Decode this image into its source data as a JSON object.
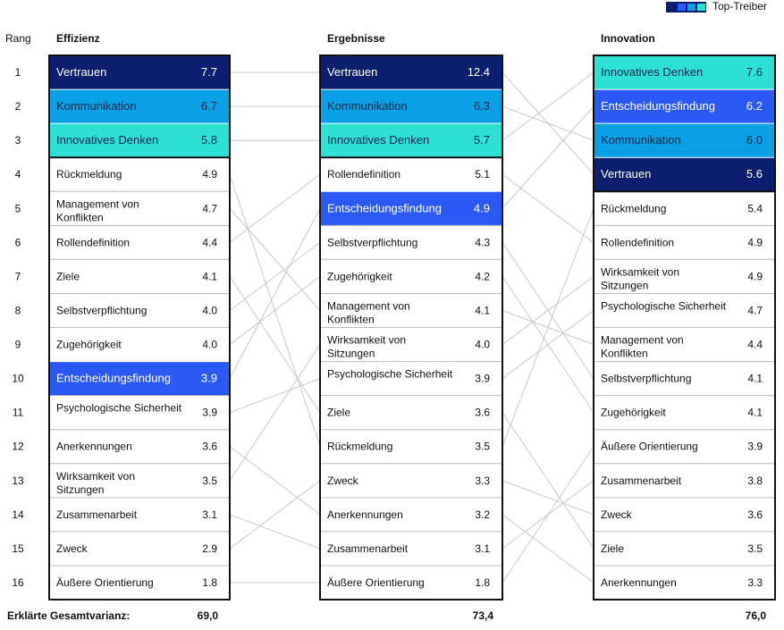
{
  "legend": {
    "label": "Top-Treiber",
    "swatches": [
      "#0b1f6e",
      "#2b59f5",
      "#0aa0e6",
      "#2de0d6"
    ]
  },
  "rank_header": "Rang",
  "variance_label": "Erklärte Gesamtvarianz:",
  "colors": {
    "Vertrauen": "#0b1f6e",
    "Entscheidungsfindung": "#2b59f5",
    "Kommunikation": "#0aa0e6",
    "Innovatives Denken": "#2de0d6",
    "connector": "#c8c8c8",
    "border": "#111111"
  },
  "chart_data": {
    "type": "table",
    "ranks": [
      1,
      2,
      3,
      4,
      5,
      6,
      7,
      8,
      9,
      10,
      11,
      12,
      13,
      14,
      15,
      16
    ],
    "columns": [
      {
        "title": "Effizienz",
        "variance": "69,0",
        "items": [
          {
            "label": "Vertrauen",
            "value": "7.7",
            "top": true
          },
          {
            "label": "Kommunikation",
            "value": "6.7",
            "top": true
          },
          {
            "label": "Innovatives Denken",
            "value": "5.8",
            "top": true
          },
          {
            "label": "Rückmeldung",
            "value": "4.9"
          },
          {
            "label": "Management von Konflikten",
            "value": "4.7"
          },
          {
            "label": "Rollendefinition",
            "value": "4.4"
          },
          {
            "label": "Ziele",
            "value": "4.1"
          },
          {
            "label": "Selbstverpflichtung",
            "value": "4.0"
          },
          {
            "label": "Zugehörigkeit",
            "value": "4.0"
          },
          {
            "label": "Entscheidungsfindung",
            "value": "3.9",
            "top": true
          },
          {
            "label": "Psychologische Sicherheit",
            "value": "3.9"
          },
          {
            "label": "Anerkennungen",
            "value": "3.6"
          },
          {
            "label": "Wirksamkeit von Sitzungen",
            "value": "3.5"
          },
          {
            "label": "Zusammenarbeit",
            "value": "3.1"
          },
          {
            "label": "Zweck",
            "value": "2.9"
          },
          {
            "label": "Äußere Orientierung",
            "value": "1.8"
          }
        ]
      },
      {
        "title": "Ergebnisse",
        "variance": "73,4",
        "items": [
          {
            "label": "Vertrauen",
            "value": "12.4",
            "top": true
          },
          {
            "label": "Kommunikation",
            "value": "6.3",
            "top": true
          },
          {
            "label": "Innovatives Denken",
            "value": "5.7",
            "top": true
          },
          {
            "label": "Rollendefinition",
            "value": "5.1"
          },
          {
            "label": "Entscheidungsfindung",
            "value": "4.9",
            "top": true
          },
          {
            "label": "Selbstverpflichtung",
            "value": "4.3"
          },
          {
            "label": "Zugehörigkeit",
            "value": "4.2"
          },
          {
            "label": "Management von Konflikten",
            "value": "4.1"
          },
          {
            "label": "Wirksamkeit von Sitzungen",
            "value": "4.0"
          },
          {
            "label": "Psychologische Sicherheit",
            "value": "3.9"
          },
          {
            "label": "Ziele",
            "value": "3.6"
          },
          {
            "label": "Rückmeldung",
            "value": "3.5"
          },
          {
            "label": "Zweck",
            "value": "3.3"
          },
          {
            "label": "Anerkennungen",
            "value": "3.2"
          },
          {
            "label": "Zusammenarbeit",
            "value": "3.1"
          },
          {
            "label": "Äußere Orientierung",
            "value": "1.8"
          }
        ]
      },
      {
        "title": "Innovation",
        "variance": "76,0",
        "items": [
          {
            "label": "Innovatives Denken",
            "value": "7.6",
            "top": true
          },
          {
            "label": "Entscheidungsfindung",
            "value": "6.2",
            "top": true
          },
          {
            "label": "Kommunikation",
            "value": "6.0",
            "top": true
          },
          {
            "label": "Vertrauen",
            "value": "5.6",
            "top": true
          },
          {
            "label": "Rückmeldung",
            "value": "5.4"
          },
          {
            "label": "Rollendefinition",
            "value": "4.9"
          },
          {
            "label": "Wirksamkeit von Sitzungen",
            "value": "4.9"
          },
          {
            "label": "Psychologische Sicherheit",
            "value": "4.7"
          },
          {
            "label": "Management von Konflikten",
            "value": "4.4"
          },
          {
            "label": "Selbstverpflichtung",
            "value": "4.1"
          },
          {
            "label": "Zugehörigkeit",
            "value": "4.1"
          },
          {
            "label": "Äußere Orientierung",
            "value": "3.9"
          },
          {
            "label": "Zusammenarbeit",
            "value": "3.8"
          },
          {
            "label": "Zweck",
            "value": "3.6"
          },
          {
            "label": "Ziele",
            "value": "3.5"
          },
          {
            "label": "Anerkennungen",
            "value": "3.3"
          }
        ]
      }
    ]
  }
}
